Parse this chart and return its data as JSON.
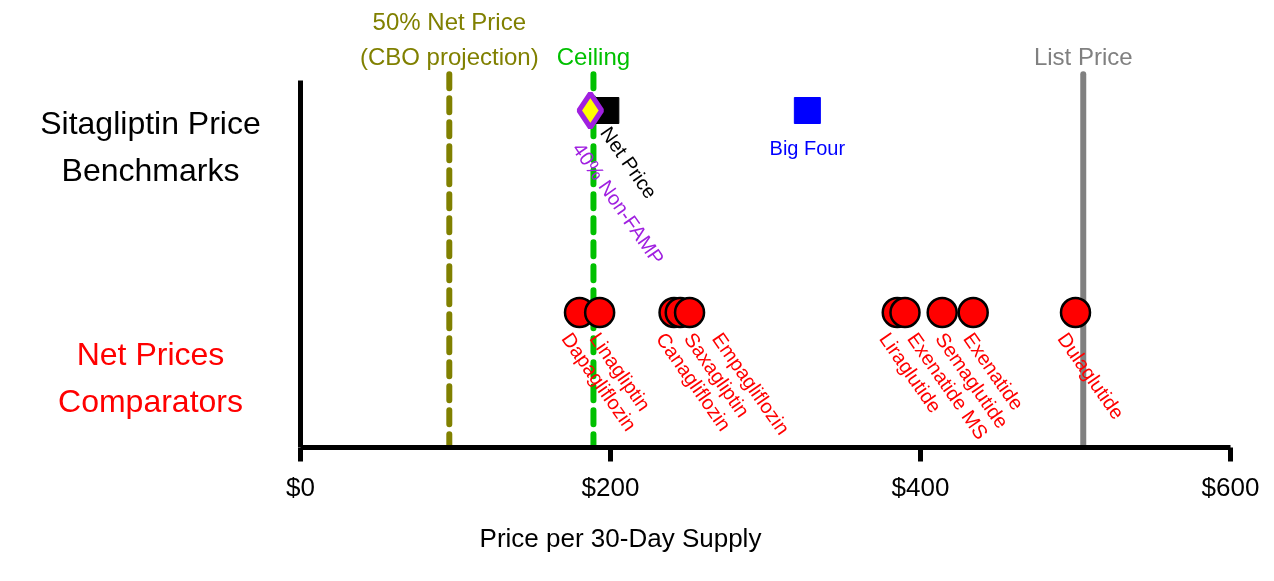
{
  "chart_data": {
    "type": "scatter",
    "orientation": "horizontal",
    "xlabel": "Price per 30-Day Supply",
    "categories": [
      "Sitagliptin Price Benchmarks",
      "Net Prices Comparators"
    ],
    "xlim": [
      0,
      600
    ],
    "xticks": [
      {
        "value": 0,
        "label": "$0"
      },
      {
        "value": 200,
        "label": "$200"
      },
      {
        "value": 400,
        "label": "$400"
      },
      {
        "value": 600,
        "label": "$600"
      }
    ],
    "series": [
      {
        "name": "Net Price",
        "color": "#000000",
        "marker": "square",
        "values": [
          197,
          null
        ]
      },
      {
        "name": "40% Non-FAMP",
        "color": "#a020e0",
        "marker": "diamond",
        "values": [
          187,
          null
        ]
      },
      {
        "name": "Big Four",
        "color": "#0000ff",
        "marker": "square",
        "values": [
          327,
          null
        ]
      },
      {
        "name": "Dapagliflozin",
        "color": "#ff0000",
        "marker": "circle",
        "values": [
          null,
          180
        ]
      },
      {
        "name": "Linagliptin",
        "color": "#ff0000",
        "marker": "circle",
        "values": [
          null,
          193
        ]
      },
      {
        "name": "Canagliflozin",
        "color": "#ff0000",
        "marker": "circle",
        "values": [
          null,
          241
        ]
      },
      {
        "name": "Saxagliptin",
        "color": "#ff0000",
        "marker": "circle",
        "values": [
          null,
          245
        ]
      },
      {
        "name": "Empagliflozin",
        "color": "#ff0000",
        "marker": "circle",
        "values": [
          null,
          251
        ]
      },
      {
        "name": "Liraglutide",
        "color": "#ff0000",
        "marker": "circle",
        "values": [
          null,
          385
        ]
      },
      {
        "name": "Exenatide MS",
        "color": "#ff0000",
        "marker": "circle",
        "values": [
          null,
          390
        ]
      },
      {
        "name": "Semaglutide",
        "color": "#ff0000",
        "marker": "circle",
        "values": [
          null,
          414
        ]
      },
      {
        "name": "Exenatide",
        "color": "#ff0000",
        "marker": "circle",
        "values": [
          null,
          434
        ]
      },
      {
        "name": "Dulaglutide",
        "color": "#ff0000",
        "marker": "circle",
        "values": [
          null,
          500
        ]
      }
    ],
    "ref_lines": [
      {
        "axis": "x",
        "value": 96,
        "label": "50% Net Price (CBO projection)",
        "color": "#808000",
        "line_style": "dashed"
      },
      {
        "axis": "x",
        "value": 189,
        "label": "Ceiling",
        "color": "#00c000",
        "line_style": "dashed"
      },
      {
        "axis": "x",
        "value": 505,
        "label": "List Price",
        "color": "#808080",
        "line_style": "solid"
      }
    ]
  }
}
